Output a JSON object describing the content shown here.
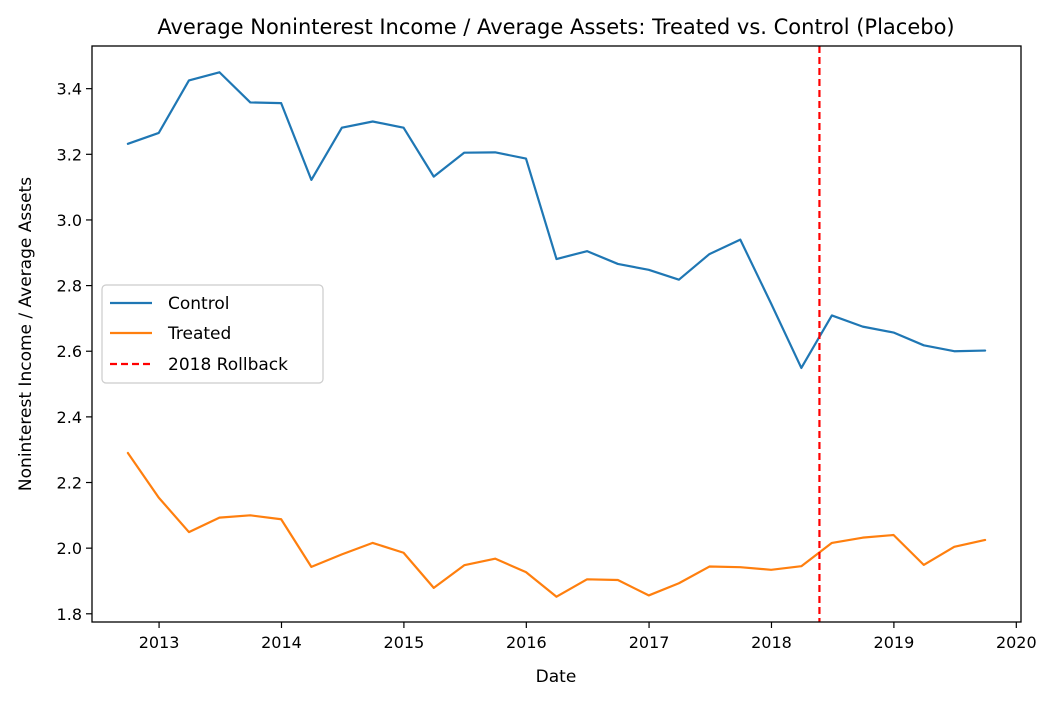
{
  "chart_data": {
    "type": "line",
    "title": "Average Noninterest Income / Average Assets: Treated vs. Control (Placebo)",
    "xlabel": "Date",
    "ylabel": "Noninterest Income / Average Assets",
    "xlim": [
      "2012-06-15",
      "2020-01-15"
    ],
    "ylim": [
      1.775,
      3.53
    ],
    "x_ticks": [
      "2013",
      "2014",
      "2015",
      "2016",
      "2017",
      "2018",
      "2019",
      "2020"
    ],
    "y_ticks": [
      "1.8",
      "2.0",
      "2.2",
      "2.4",
      "2.6",
      "2.8",
      "3.0",
      "3.2",
      "3.4"
    ],
    "x": [
      "2012-09-30",
      "2012-12-31",
      "2013-03-31",
      "2013-06-30",
      "2013-09-30",
      "2013-12-31",
      "2014-03-31",
      "2014-06-30",
      "2014-09-30",
      "2014-12-31",
      "2015-03-31",
      "2015-06-30",
      "2015-09-30",
      "2015-12-31",
      "2016-03-31",
      "2016-06-30",
      "2016-09-30",
      "2016-12-31",
      "2017-03-31",
      "2017-06-30",
      "2017-09-30",
      "2017-12-31",
      "2018-03-31",
      "2018-06-30",
      "2018-09-30",
      "2018-12-31",
      "2019-03-31",
      "2019-06-30",
      "2019-09-30"
    ],
    "series": [
      {
        "name": "Control",
        "color": "#1f77b4",
        "values": [
          3.232,
          3.265,
          3.425,
          3.45,
          3.358,
          3.356,
          3.122,
          3.281,
          3.3,
          3.281,
          3.132,
          3.205,
          3.206,
          3.187,
          2.881,
          2.905,
          2.866,
          2.848,
          2.818,
          2.896,
          2.94,
          2.745,
          2.549,
          2.709,
          2.675,
          2.657,
          2.618,
          2.6,
          2.602
        ]
      },
      {
        "name": "Treated",
        "color": "#ff7f0e",
        "values": [
          2.29,
          2.154,
          2.049,
          2.093,
          2.1,
          2.088,
          1.943,
          1.981,
          2.016,
          1.986,
          1.879,
          1.948,
          1.968,
          1.927,
          1.852,
          1.905,
          1.903,
          1.856,
          1.893,
          1.944,
          1.942,
          1.934,
          1.945,
          2.016,
          2.032,
          2.04,
          1.949,
          2.004,
          2.025
        ]
      }
    ],
    "vline": {
      "name": "2018 Rollback",
      "x": "2018-05-24",
      "color": "#ff0000",
      "style": "dashed"
    },
    "legend": {
      "placement": "center-left",
      "entries": [
        "Control",
        "Treated",
        "2018 Rollback"
      ]
    },
    "grid": false
  }
}
